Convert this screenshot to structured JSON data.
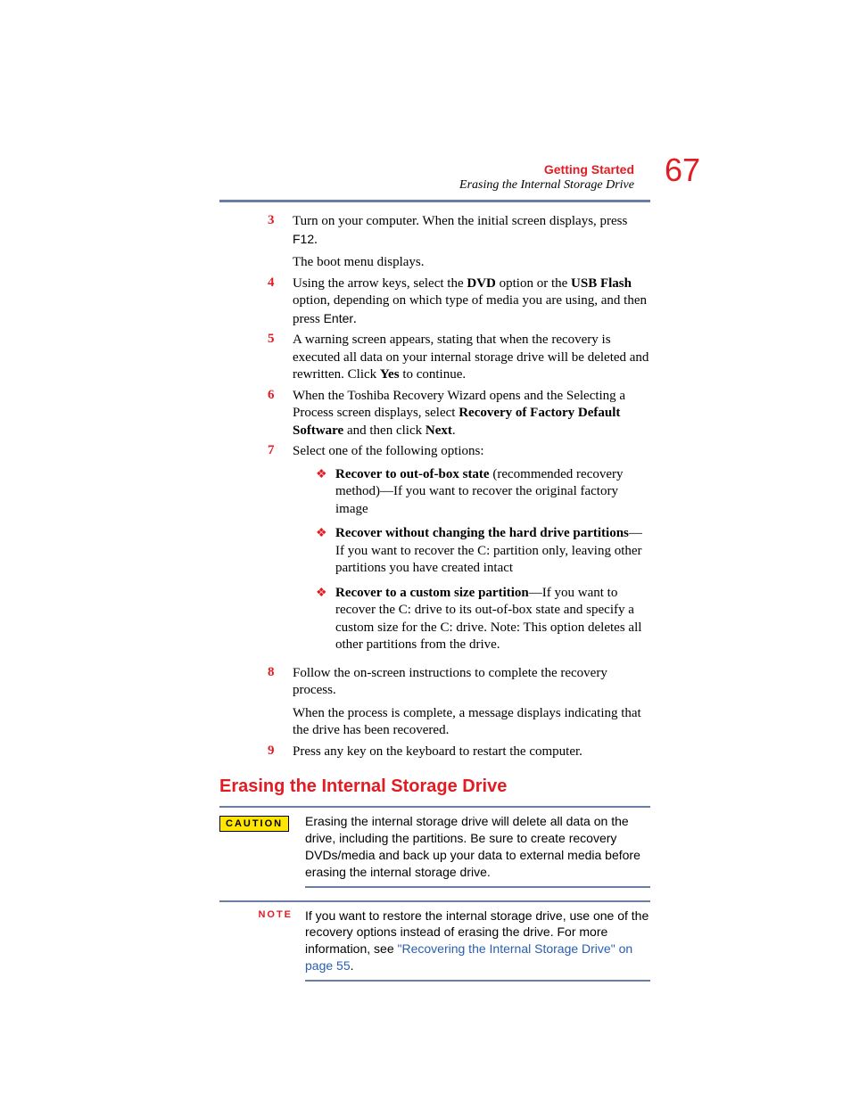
{
  "header": {
    "chapter": "Getting Started",
    "subtitle": "Erasing the Internal Storage Drive",
    "page_number": "67"
  },
  "colors": {
    "accent": "#e31b23",
    "rule": "#6b7da6",
    "caution_bg": "#ffe600",
    "link": "#2a5db0"
  },
  "steps": [
    {
      "num": "3",
      "paras": [
        "Turn on your computer. When the initial screen displays, press <span class=\"sans\">F12</span>.",
        "The boot menu displays."
      ]
    },
    {
      "num": "4",
      "paras": [
        "Using the arrow keys, select the <b>DVD</b> option or the <b>USB Flash</b> option, depending on which type of media you are using, and then press <span class=\"sans\">Enter</span>."
      ]
    },
    {
      "num": "5",
      "paras": [
        "A warning screen appears, stating that when the recovery is executed all data on your internal storage drive will be deleted and rewritten. Click <b>Yes</b> to continue."
      ]
    },
    {
      "num": "6",
      "paras": [
        "When the Toshiba Recovery Wizard opens and the Selecting a Process screen displays, select <b>Recovery of Factory Default Software</b> and then click <b>Next</b>."
      ]
    },
    {
      "num": "7",
      "paras": [
        "Select one of the following options:"
      ],
      "bullets": [
        "<b>Recover to out-of-box state</b> (recommended recovery method)—If you want to recover the original factory image",
        "<b>Recover without changing the hard drive partitions</b>—If you want to recover the C: partition only, leaving other partitions you have created intact",
        "<b>Recover to a custom size partition</b>—If you want to recover the C: drive to its out-of-box state and specify a custom size for the C: drive. Note: This option deletes all other partitions from the drive."
      ]
    },
    {
      "num": "8",
      "paras": [
        "Follow the on-screen instructions to complete the recovery process.",
        "When the process is complete, a message displays indicating that the drive has been recovered."
      ]
    },
    {
      "num": "9",
      "paras": [
        "Press any key on the keyboard to restart the computer."
      ]
    }
  ],
  "section_heading": "Erasing the Internal Storage Drive",
  "caution": {
    "label": "CAUTION",
    "text": "Erasing the internal storage drive will delete all data on the drive, including the partitions. Be sure to create recovery DVDs/media and back up your data to external media before erasing the internal storage drive."
  },
  "note": {
    "label": "NOTE",
    "text_before_link": "If you want to restore the internal storage drive, use one of the recovery options instead of erasing the drive. For more information, see ",
    "link_text": "\"Recovering the Internal Storage Drive\" on page 55",
    "text_after_link": "."
  }
}
